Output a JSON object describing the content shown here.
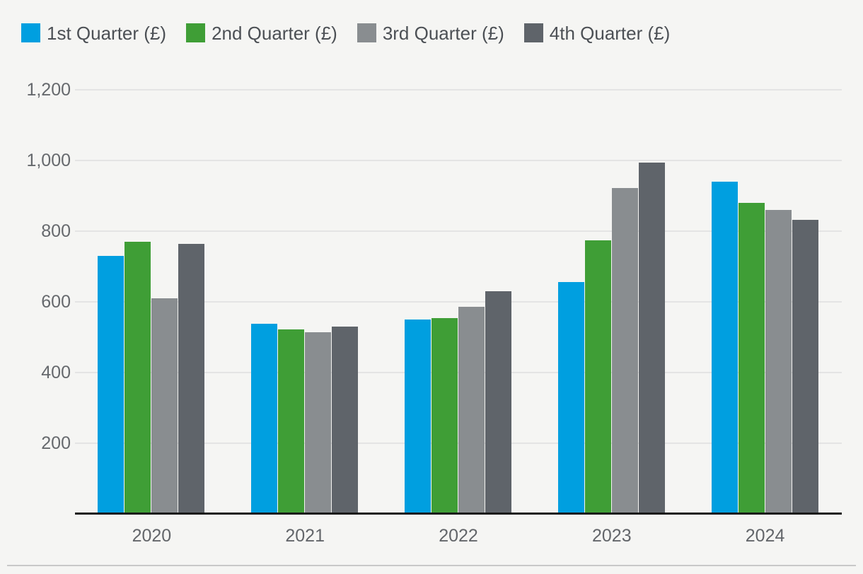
{
  "chart_data": {
    "type": "bar",
    "title": "",
    "categories": [
      "2020",
      "2021",
      "2022",
      "2023",
      "2024"
    ],
    "series": [
      {
        "name": "1st Quarter (£)",
        "color": "#009fe0",
        "values": [
          730,
          538,
          550,
          657,
          940
        ]
      },
      {
        "name": "2nd Quarter (£)",
        "color": "#3f9e36",
        "values": [
          770,
          522,
          554,
          775,
          880
        ]
      },
      {
        "name": "3rd Quarter (£)",
        "color": "#898d90",
        "values": [
          610,
          515,
          587,
          922,
          860
        ]
      },
      {
        "name": "4th Quarter (£)",
        "color": "#5f646a",
        "values": [
          765,
          530,
          630,
          994,
          832
        ]
      }
    ],
    "xlabel": "",
    "ylabel": "",
    "ylim": [
      0,
      1200
    ],
    "yticks": [
      200,
      400,
      600,
      800,
      1000,
      1200
    ],
    "ytick_labels": [
      "200",
      "400",
      "600",
      "800",
      "1,000",
      "1,200"
    ],
    "grid": "horizontal",
    "legend_position": "top-left"
  },
  "colors": {
    "background": "#f5f5f3",
    "gridline": "#e4e4e4",
    "axis_line": "#1b1b1a",
    "tick_text": "#66696d",
    "legend_text": "#4c5055",
    "bottom_divider": "#c8c8c8"
  }
}
